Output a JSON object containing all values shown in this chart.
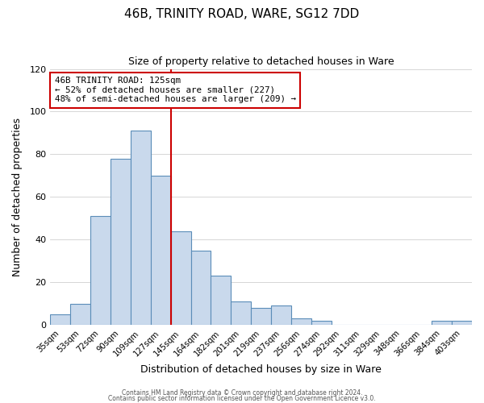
{
  "title": "46B, TRINITY ROAD, WARE, SG12 7DD",
  "subtitle": "Size of property relative to detached houses in Ware",
  "xlabel": "Distribution of detached houses by size in Ware",
  "ylabel": "Number of detached properties",
  "bar_labels": [
    "35sqm",
    "53sqm",
    "72sqm",
    "90sqm",
    "109sqm",
    "127sqm",
    "145sqm",
    "164sqm",
    "182sqm",
    "201sqm",
    "219sqm",
    "237sqm",
    "256sqm",
    "274sqm",
    "292sqm",
    "311sqm",
    "329sqm",
    "348sqm",
    "366sqm",
    "384sqm",
    "403sqm"
  ],
  "bar_values": [
    5,
    10,
    51,
    78,
    91,
    70,
    44,
    35,
    23,
    11,
    8,
    9,
    3,
    2,
    0,
    0,
    0,
    0,
    0,
    2,
    2
  ],
  "bar_color": "#c9d9ec",
  "bar_edge_color": "#5b8db8",
  "ylim": [
    0,
    120
  ],
  "yticks": [
    0,
    20,
    40,
    60,
    80,
    100,
    120
  ],
  "vline_x": 5.5,
  "vline_color": "#cc0000",
  "annotation_title": "46B TRINITY ROAD: 125sqm",
  "annotation_line1": "← 52% of detached houses are smaller (227)",
  "annotation_line2": "48% of semi-detached houses are larger (209) →",
  "annotation_box_color": "#cc0000",
  "footer1": "Contains HM Land Registry data © Crown copyright and database right 2024.",
  "footer2": "Contains public sector information licensed under the Open Government Licence v3.0.",
  "background_color": "#ffffff",
  "grid_color": "#d0d0d0"
}
